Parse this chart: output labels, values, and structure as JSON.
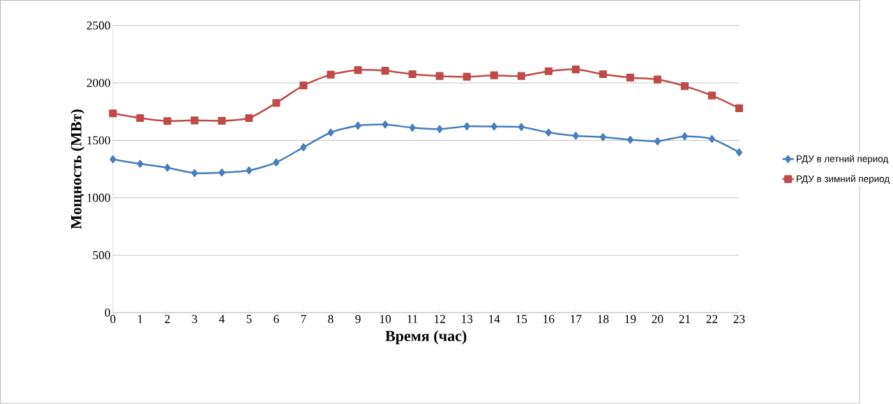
{
  "chart_data": {
    "type": "line",
    "xlabel": "Время (час)",
    "ylabel": "Мощность (МВт)",
    "categories": [
      "0",
      "1",
      "2",
      "3",
      "4",
      "5",
      "6",
      "7",
      "8",
      "9",
      "10",
      "11",
      "12",
      "13",
      "14",
      "15",
      "16",
      "17",
      "18",
      "19",
      "20",
      "21",
      "22",
      "23"
    ],
    "series": [
      {
        "name": "РДУ в летний период",
        "color": "#4a7ebb",
        "marker": "diamond",
        "values": [
          1335,
          1295,
          1262,
          1215,
          1220,
          1238,
          1308,
          1440,
          1568,
          1628,
          1638,
          1610,
          1598,
          1622,
          1620,
          1616,
          1568,
          1540,
          1528,
          1505,
          1492,
          1535,
          1512,
          1396
        ]
      },
      {
        "name": "РДУ в зимний период",
        "color": "#be4b48",
        "marker": "square",
        "values": [
          1735,
          1694,
          1668,
          1674,
          1670,
          1694,
          1826,
          1978,
          2072,
          2112,
          2106,
          2076,
          2060,
          2054,
          2066,
          2060,
          2102,
          2118,
          2076,
          2046,
          2030,
          1972,
          1890,
          1780
        ]
      }
    ],
    "ylim": [
      0,
      2500
    ],
    "yticks": [
      0,
      500,
      1000,
      1500,
      2000,
      2500
    ],
    "grid": "y",
    "legend": "right",
    "line_style": "solid"
  }
}
